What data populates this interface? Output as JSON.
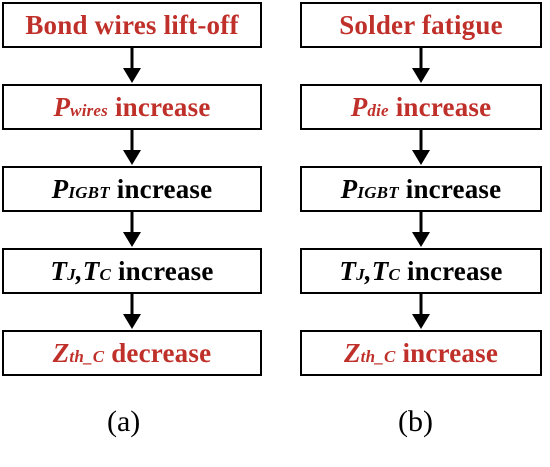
{
  "colors": {
    "highlight": "#c0302a",
    "text": "#000000",
    "border": "#000000"
  },
  "panel_a": {
    "caption": "(a)",
    "boxes": [
      {
        "text": "Bond wires lift-off",
        "color": "red"
      },
      {
        "sym": "P",
        "sub": "wires",
        "suffix": " increase",
        "color": "red"
      },
      {
        "sym": "P",
        "sub": "IGBT",
        "suffix": " increase",
        "color": "black"
      },
      {
        "sym": "T",
        "sub": "J",
        "sep": ",",
        "sym2": "T",
        "sub2": "C",
        "suffix": " increase",
        "color": "black"
      },
      {
        "sym": "Z",
        "sub": "th_C",
        "suffix": " decrease",
        "color": "red"
      }
    ]
  },
  "panel_b": {
    "caption": "(b)",
    "boxes": [
      {
        "text": "Solder fatigue",
        "color": "red"
      },
      {
        "sym": "P",
        "sub": "die",
        "suffix": " increase",
        "color": "red"
      },
      {
        "sym": "P",
        "sub": "IGBT",
        "suffix": " increase",
        "color": "black"
      },
      {
        "sym": "T",
        "sub": "J",
        "sep": ",",
        "sym2": "T",
        "sub2": "C",
        "suffix": " increase",
        "color": "black"
      },
      {
        "sym": "Z",
        "sub": "th_C",
        "suffix": " increase",
        "color": "red"
      }
    ]
  }
}
